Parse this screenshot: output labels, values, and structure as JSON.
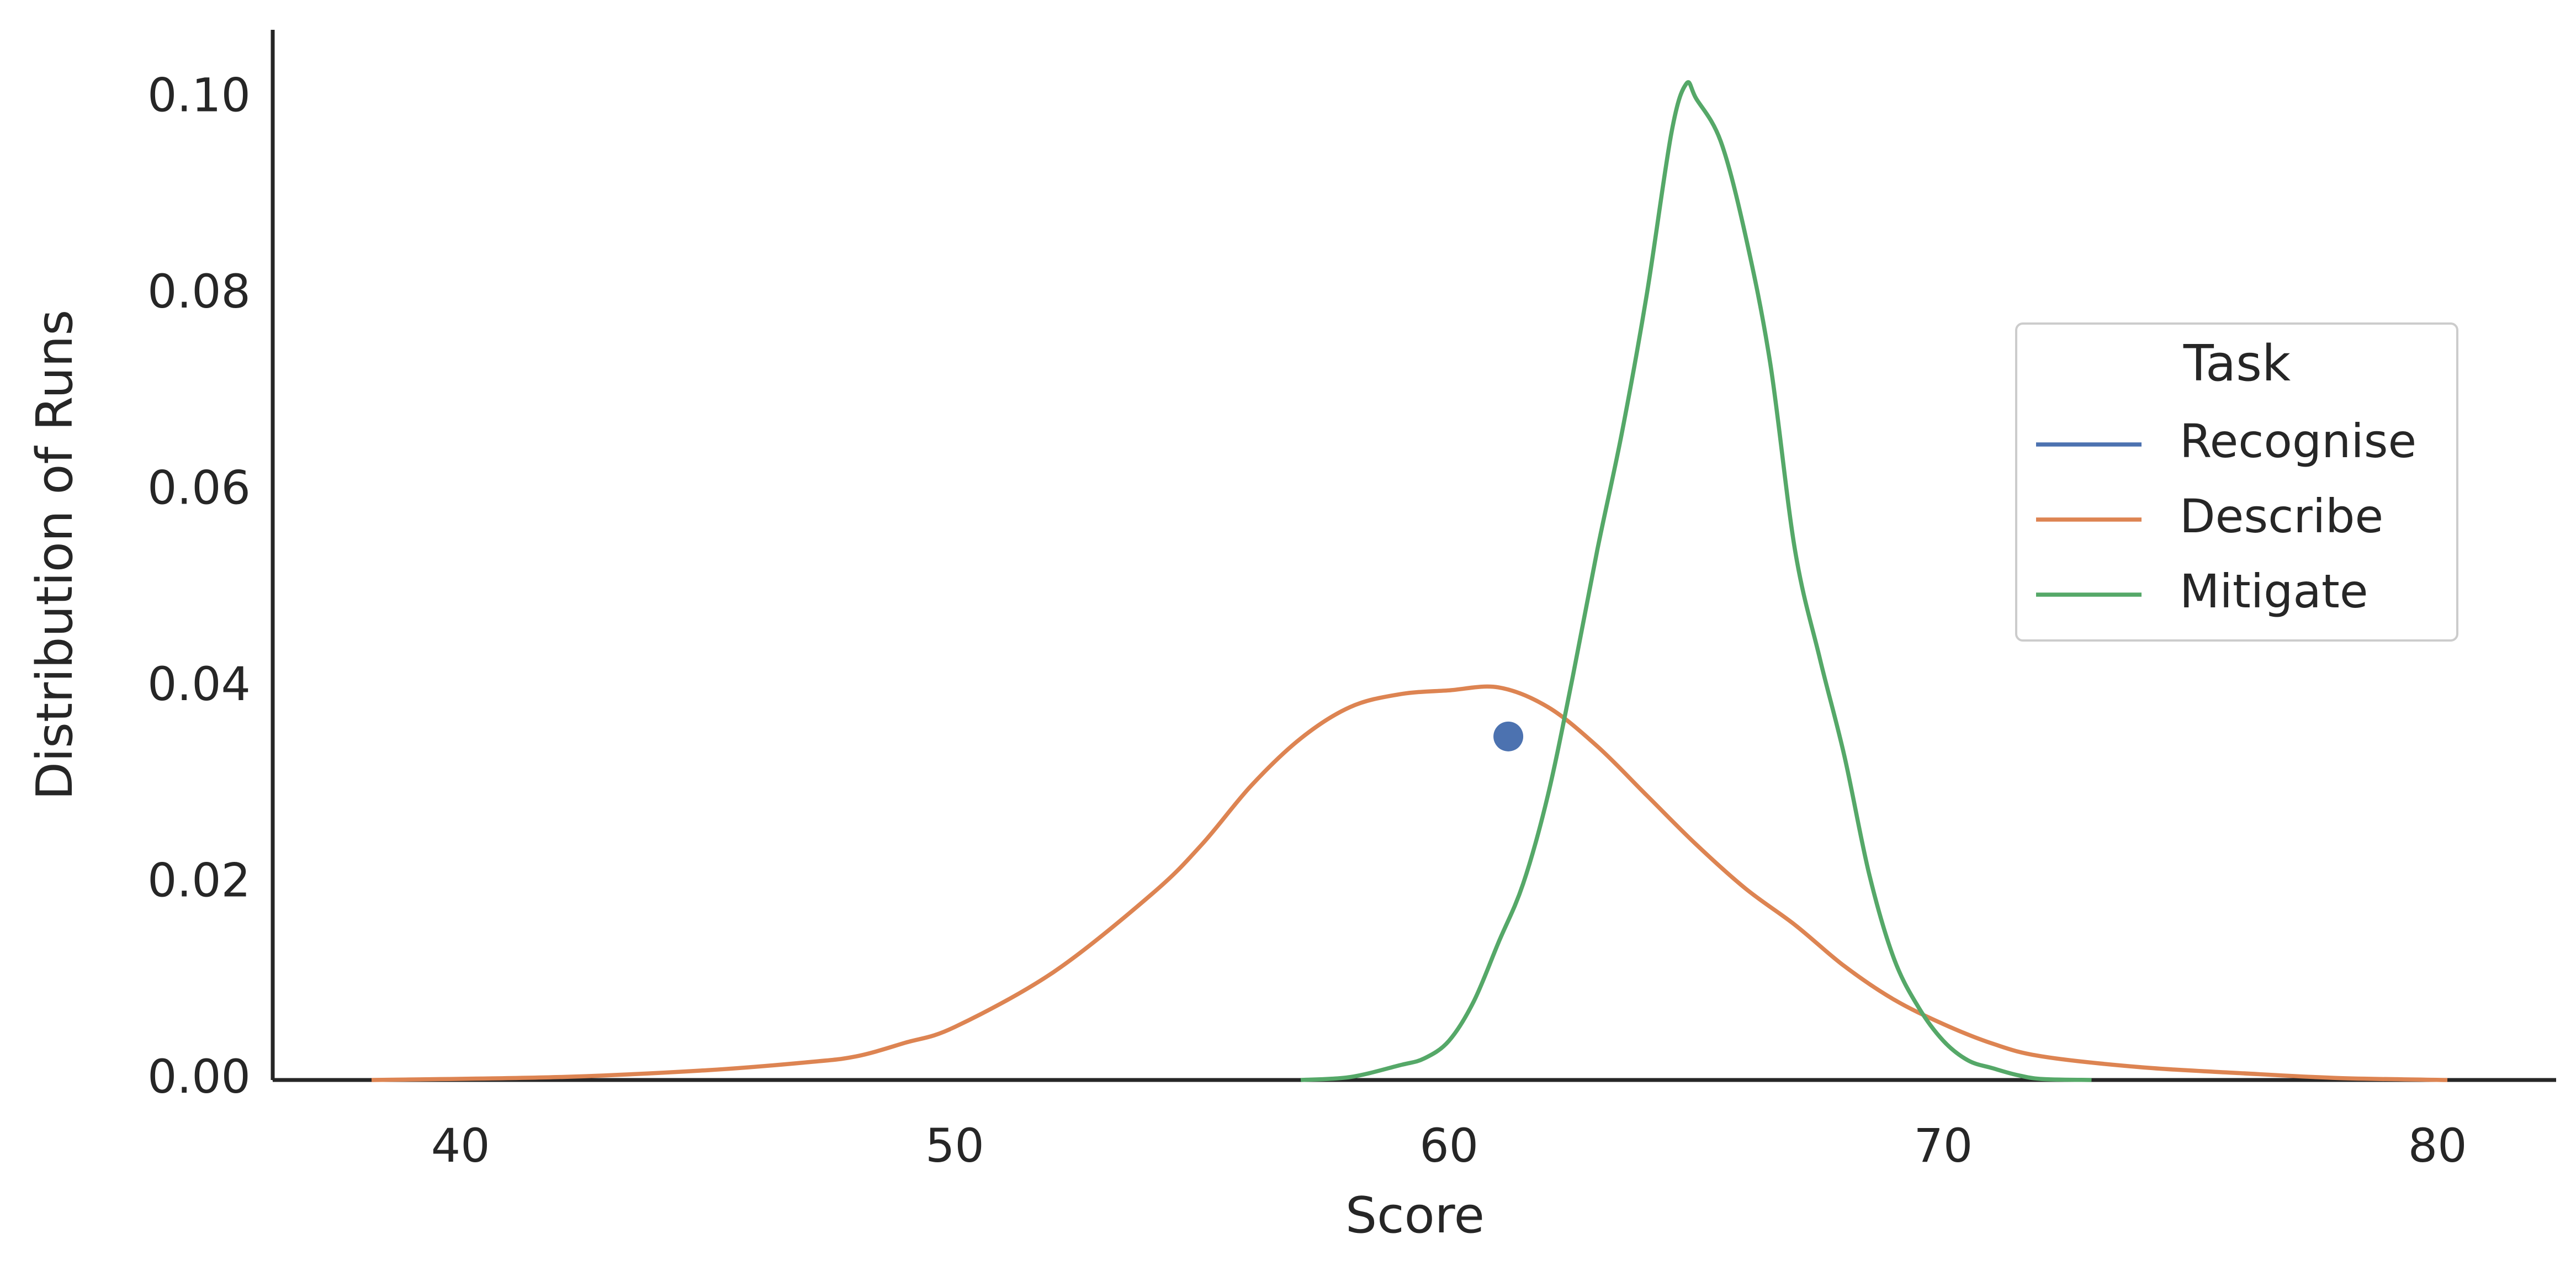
{
  "chart_data": {
    "type": "line",
    "x_label": "Score",
    "y_label": "Distribution of Runs",
    "xlim": [
      36.2,
      82.4
    ],
    "ylim": [
      0,
      0.107
    ],
    "xticks": [
      40,
      50,
      60,
      70,
      80
    ],
    "yticks": [
      {
        "value": 0,
        "label": "0.00"
      },
      {
        "value": 0.02,
        "label": "0.02"
      },
      {
        "value": 0.04,
        "label": "0.04"
      },
      {
        "value": 0.06,
        "label": "0.06"
      },
      {
        "value": 0.08,
        "label": "0.08"
      },
      {
        "value": 0.1,
        "label": "0.10"
      }
    ],
    "legend_title": "Task",
    "legend_position": "right",
    "series": [
      {
        "name": "Recognise",
        "color": "#4c72b0",
        "x": [
          61.2
        ],
        "values": [
          0.035
        ]
      },
      {
        "name": "Describe",
        "color": "#dd8452",
        "x": [
          38.2,
          42,
          45,
          47,
          48,
          49,
          50,
          52,
          54,
          55,
          56,
          57,
          58,
          59,
          60,
          61,
          62,
          63,
          64,
          65,
          66,
          67,
          68,
          69,
          70,
          71,
          72,
          74,
          76,
          78,
          80.2
        ],
        "values": [
          0,
          0.0003,
          0.001,
          0.0018,
          0.0024,
          0.0038,
          0.0054,
          0.011,
          0.019,
          0.024,
          0.03,
          0.0348,
          0.038,
          0.0393,
          0.0397,
          0.04,
          0.038,
          0.034,
          0.029,
          0.024,
          0.0195,
          0.0158,
          0.0116,
          0.0082,
          0.0057,
          0.0037,
          0.0024,
          0.0013,
          0.0007,
          0.0002,
          0
        ]
      },
      {
        "name": "Mitigate",
        "color": "#55a868",
        "x": [
          57,
          58,
          59,
          59.5,
          60,
          60.5,
          61,
          61.5,
          62,
          62.5,
          63,
          63.5,
          64,
          64.5,
          64.8,
          65,
          65.5,
          66,
          66.5,
          67,
          67.5,
          68,
          68.5,
          69,
          69.5,
          70,
          70.5,
          71,
          71.5,
          72,
          73
        ],
        "values": [
          0,
          0.0003,
          0.0015,
          0.0022,
          0.004,
          0.008,
          0.014,
          0.02,
          0.029,
          0.041,
          0.054,
          0.066,
          0.08,
          0.0965,
          0.1015,
          0.1,
          0.0956,
          0.086,
          0.073,
          0.054,
          0.043,
          0.033,
          0.021,
          0.0124,
          0.0074,
          0.004,
          0.002,
          0.0012,
          0.0005,
          0.0001,
          0
        ]
      }
    ]
  }
}
